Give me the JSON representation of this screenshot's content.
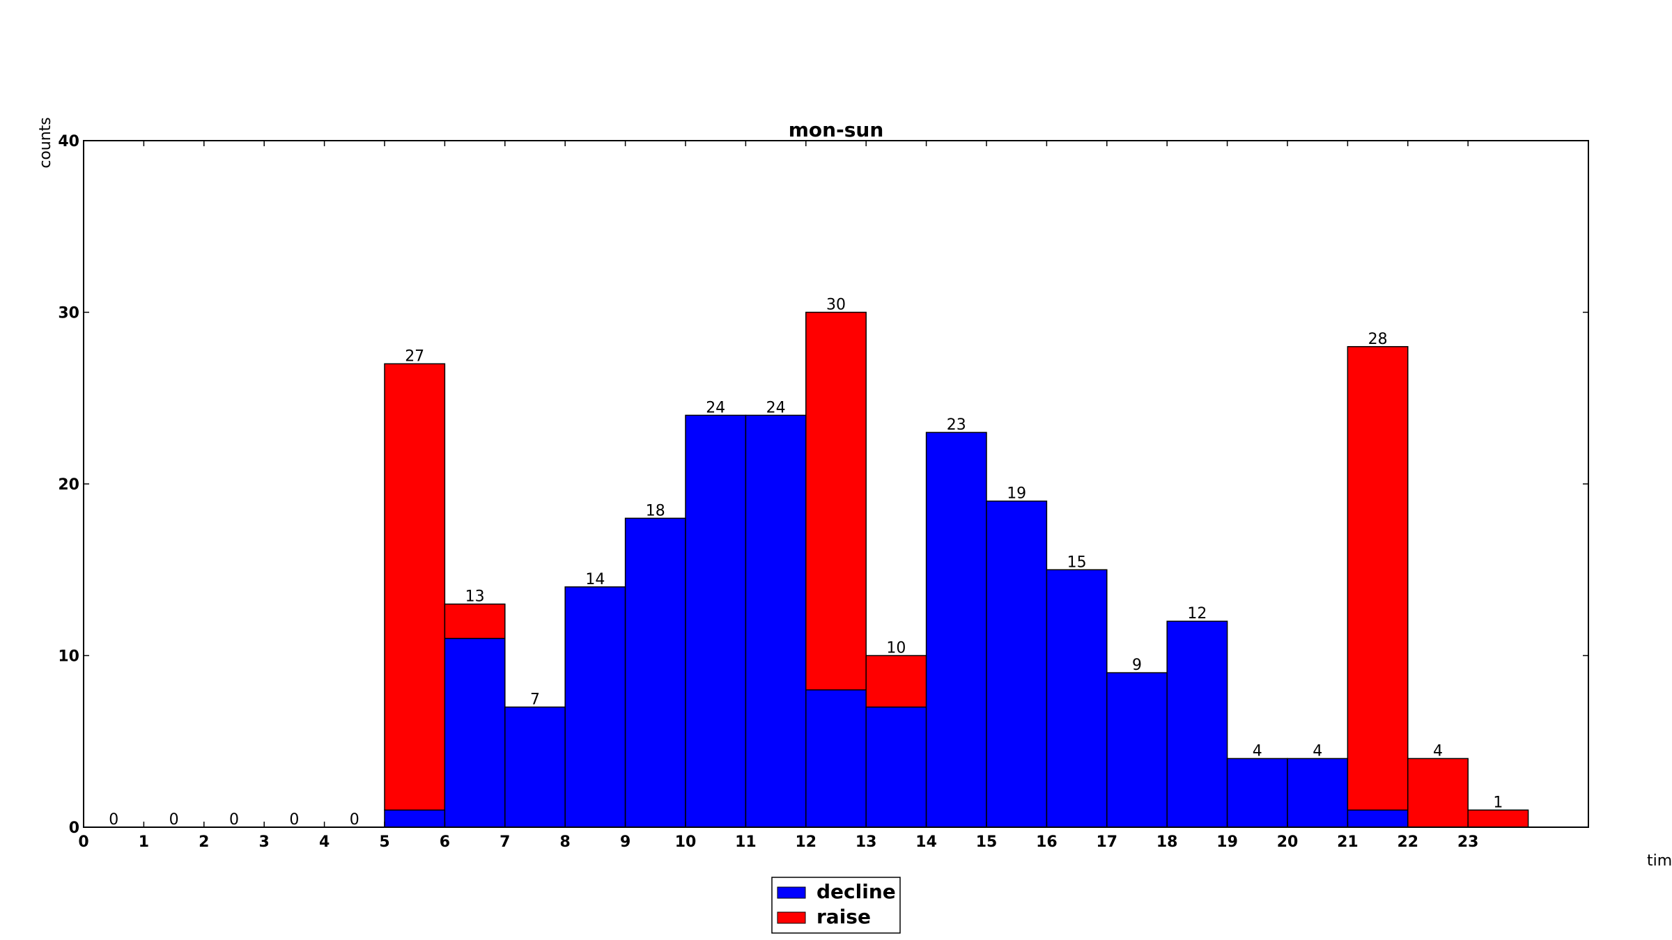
{
  "chart_data": {
    "type": "bar",
    "stacked": true,
    "title": "mon-sun",
    "xlabel": "tim",
    "ylabel": "counts",
    "x_ticks": [
      "0",
      "1",
      "2",
      "3",
      "4",
      "5",
      "6",
      "7",
      "8",
      "9",
      "10",
      "11",
      "12",
      "13",
      "14",
      "15",
      "16",
      "17",
      "18",
      "19",
      "20",
      "21",
      "22",
      "23"
    ],
    "xlim": [
      0,
      25
    ],
    "ylim": [
      0,
      40
    ],
    "y_ticks": [
      "0",
      "10",
      "20",
      "30",
      "40"
    ],
    "bins": [
      0,
      1,
      2,
      3,
      4,
      5,
      6,
      7,
      8,
      9,
      10,
      11,
      12,
      13,
      14,
      15,
      16,
      17,
      18,
      19,
      20,
      21,
      22,
      23
    ],
    "series": [
      {
        "name": "decline",
        "color": "#0000ff",
        "values": [
          0,
          0,
          0,
          0,
          0,
          1,
          11,
          7,
          14,
          18,
          24,
          24,
          8,
          7,
          23,
          19,
          15,
          9,
          12,
          4,
          4,
          1,
          0,
          0
        ]
      },
      {
        "name": "raise",
        "color": "#ff0000",
        "values": [
          0,
          0,
          0,
          0,
          0,
          26,
          2,
          0,
          0,
          0,
          0,
          0,
          22,
          3,
          0,
          0,
          0,
          0,
          0,
          0,
          0,
          27,
          4,
          1
        ]
      }
    ],
    "totals": [
      "0",
      "0",
      "0",
      "0",
      "0",
      "27",
      "13",
      "7",
      "14",
      "18",
      "24",
      "24",
      "30",
      "10",
      "23",
      "19",
      "15",
      "9",
      "12",
      "4",
      "4",
      "28",
      "4",
      "1"
    ],
    "legend_position": "bottom-center",
    "grid": false
  }
}
